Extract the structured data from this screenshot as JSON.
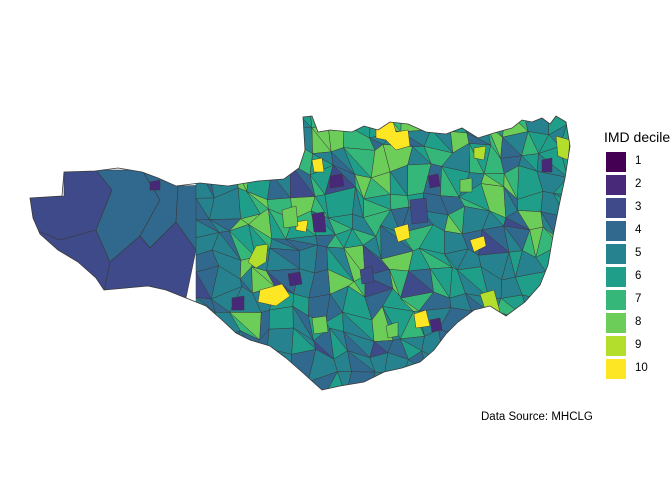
{
  "legend": {
    "title": "IMD decile",
    "items": [
      {
        "label": "1",
        "color": "#440154"
      },
      {
        "label": "2",
        "color": "#482878"
      },
      {
        "label": "3",
        "color": "#3E4A89"
      },
      {
        "label": "4",
        "color": "#31688E"
      },
      {
        "label": "5",
        "color": "#26828E"
      },
      {
        "label": "6",
        "color": "#1F9E89"
      },
      {
        "label": "7",
        "color": "#35B779"
      },
      {
        "label": "8",
        "color": "#6DCD59"
      },
      {
        "label": "9",
        "color": "#B4DE2C"
      },
      {
        "label": "10",
        "color": "#FDE725"
      }
    ]
  },
  "caption": "Data Source: MHCLG",
  "colors": {
    "border": "#3a3a3a",
    "background": "#ffffff"
  }
}
